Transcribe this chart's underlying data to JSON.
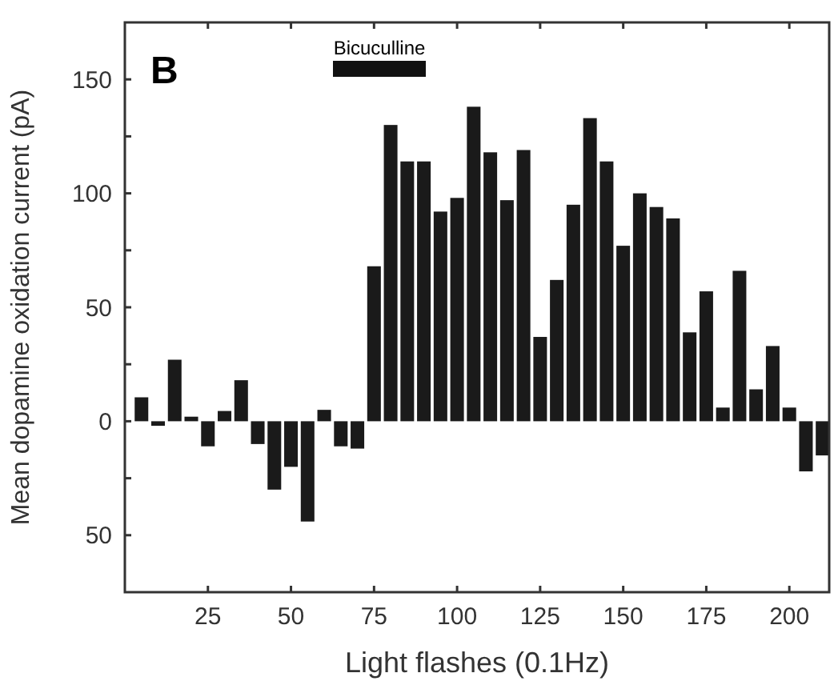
{
  "chart_data": {
    "type": "bar",
    "xlabel": "Light flashes (0.1Hz)",
    "ylabel": "Mean dopamine oxidation current (pA)",
    "x": [
      5,
      10,
      15,
      20,
      25,
      30,
      35,
      40,
      45,
      50,
      55,
      60,
      65,
      70,
      75,
      80,
      85,
      90,
      95,
      100,
      105,
      110,
      115,
      120,
      125,
      130,
      135,
      140,
      145,
      150,
      155,
      160,
      165,
      170,
      175,
      180,
      185,
      190,
      195,
      200,
      205,
      210
    ],
    "values": [
      10.5,
      -2,
      27,
      2,
      -11,
      4.5,
      18,
      -10,
      -30,
      -20,
      -44,
      5,
      -11,
      -12,
      68,
      130,
      114,
      114,
      92,
      98,
      138,
      118,
      97,
      119,
      37,
      62,
      95,
      133,
      114,
      77,
      100,
      94,
      89,
      39,
      57,
      6,
      66,
      14,
      33,
      6,
      -22,
      -15
    ],
    "color": "#1a1a1a",
    "xlim": [
      0,
      212
    ],
    "xticks": [
      25,
      50,
      75,
      100,
      125,
      150,
      175,
      200
    ],
    "ylim": [
      -75,
      175
    ],
    "yticks": [
      {
        "value": -50,
        "label": "50"
      },
      {
        "value": -25,
        "label": null
      },
      0,
      {
        "value": 25,
        "label": null
      },
      50,
      {
        "value": 75,
        "label": null
      },
      100,
      {
        "value": 125,
        "label": null
      },
      150
    ],
    "annotations": [
      "B",
      "Bicuculline"
    ],
    "grid": false
  }
}
